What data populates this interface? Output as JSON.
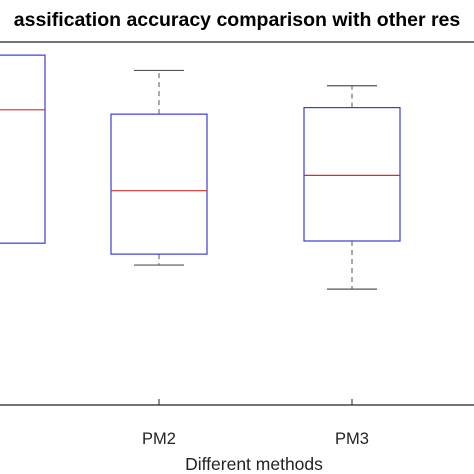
{
  "chart_data": {
    "type": "box",
    "title": "assification accuracy comparison with other res",
    "xlabel": "Different methods",
    "ylabel": "",
    "categories": [
      "",
      "PM2",
      "PM3"
    ],
    "boxes": [
      {
        "label": "",
        "whisker_low": null,
        "q1": 0.0,
        "median": 0.61,
        "q3": 0.86,
        "whisker_high": null
      },
      {
        "label": "PM2",
        "whisker_low": -0.1,
        "q1": -0.05,
        "median": 0.24,
        "q3": 0.59,
        "whisker_high": 0.79
      },
      {
        "label": "PM3",
        "whisker_low": -0.21,
        "q1": 0.01,
        "median": 0.31,
        "q3": 0.62,
        "whisker_high": 0.72
      }
    ],
    "ylim": [
      -0.74,
      0.92
    ],
    "grid": false,
    "legend": "none",
    "colors": {
      "box": "#3b3bdc",
      "median": "#d0302c",
      "whisker": "#555555",
      "axis": "#222222"
    }
  }
}
